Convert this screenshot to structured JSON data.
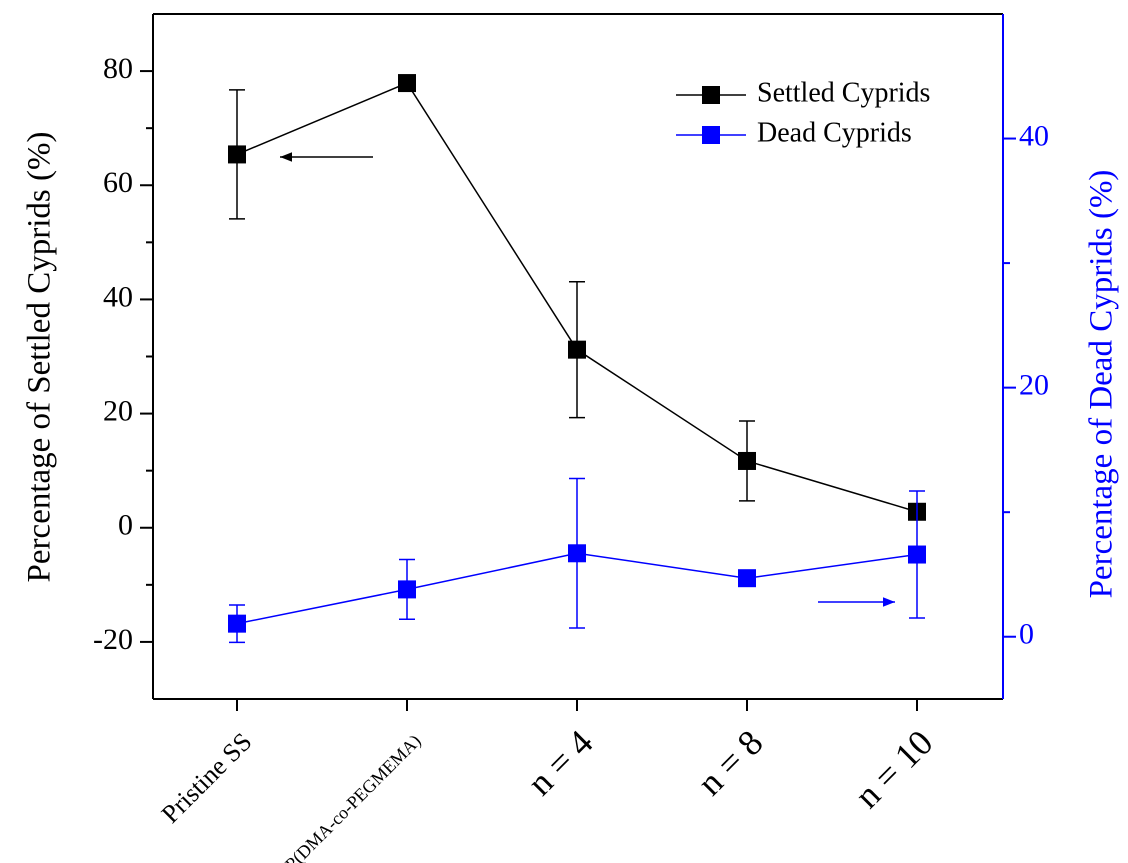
{
  "chart_data": {
    "type": "line",
    "categories": [
      "Pristine SS",
      "SS-P(DMA-co-PEGMEMA)",
      "n = 4",
      "n = 8",
      "n = 10"
    ],
    "ylabel": "Percentage of Settled Cyprids (%)",
    "y2label": "Percentage of Dead Cyprids (%)",
    "ylim": [
      -30,
      90
    ],
    "yticks": [
      -20,
      0,
      20,
      40,
      60,
      80
    ],
    "yminorticks": [
      -10,
      10,
      30,
      50,
      70
    ],
    "y2lim": [
      -5,
      50
    ],
    "y2ticks": [
      0,
      20,
      40
    ],
    "y2minorticks": [
      10,
      30
    ],
    "legend": "upper right",
    "series": [
      {
        "name": "Settled Cyprids",
        "color": "#000000",
        "values": [
          65.4,
          77.9,
          31.2,
          11.7,
          2.8
        ],
        "errors": [
          11.3,
          0,
          11.9,
          7,
          0
        ]
      },
      {
        "name": "Dead Cyprids",
        "color": "#0000ff",
        "axis": "y2",
        "values": [
          1.05,
          3.8,
          6.7,
          4.7,
          6.6
        ],
        "errors": [
          1.5,
          2.4,
          6,
          0,
          5.1
        ]
      }
    ]
  }
}
